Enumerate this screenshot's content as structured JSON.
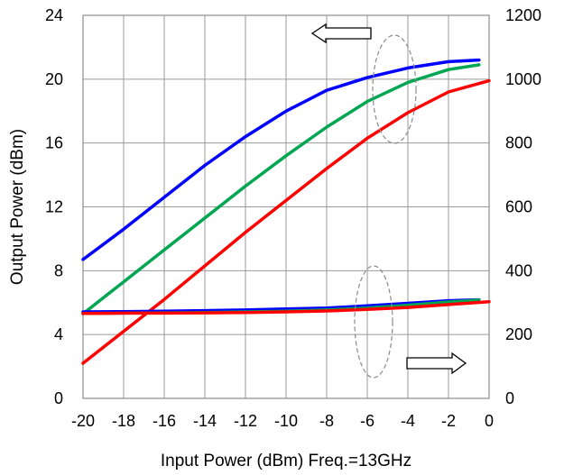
{
  "chart_data": {
    "type": "line",
    "xlabel": "Input Power (dBm) Freq.=13GHz",
    "ylabel_left": "Output Power (dBm)",
    "xlim": [
      -20,
      0
    ],
    "ylim_left": [
      0,
      24
    ],
    "ylim_right": [
      0,
      1200
    ],
    "x_ticks": [
      "-20",
      "-18",
      "-16",
      "-14",
      "-12",
      "-10",
      "-8",
      "-6",
      "-4",
      "-2",
      "0"
    ],
    "y_left_ticks": [
      "0",
      "4",
      "8",
      "12",
      "16",
      "20",
      "24"
    ],
    "y_right_ticks": [
      "0",
      "200",
      "400",
      "600",
      "800",
      "1000",
      "1200"
    ],
    "grid": true,
    "series": [
      {
        "axis": "left",
        "color": "#0000ff",
        "x": [
          -20,
          -18,
          -16,
          -14,
          -12,
          -10,
          -8,
          -6,
          -4,
          -2,
          -0.5
        ],
        "y": [
          8.7,
          10.6,
          12.6,
          14.6,
          16.4,
          18.0,
          19.3,
          20.1,
          20.7,
          21.1,
          21.2
        ]
      },
      {
        "axis": "left",
        "color": "#00a651",
        "x": [
          -20,
          -18,
          -16,
          -14,
          -12,
          -10,
          -8,
          -6,
          -4,
          -2,
          -0.5
        ],
        "y": [
          5.3,
          7.3,
          9.3,
          11.3,
          13.3,
          15.2,
          17.0,
          18.6,
          19.8,
          20.6,
          20.9
        ]
      },
      {
        "axis": "left",
        "color": "#ff0000",
        "x": [
          -20,
          -18,
          -16,
          -14,
          -12,
          -10,
          -8,
          -6,
          -4,
          -2,
          0
        ],
        "y": [
          2.2,
          4.2,
          6.2,
          8.3,
          10.4,
          12.4,
          14.4,
          16.3,
          17.9,
          19.2,
          19.9
        ]
      },
      {
        "axis": "right",
        "color": "#0000ff",
        "x": [
          -20,
          -18,
          -16,
          -14,
          -12,
          -10,
          -8,
          -6,
          -4,
          -2,
          -0.5
        ],
        "y": [
          271,
          272,
          273,
          275,
          277,
          280,
          283,
          290,
          298,
          306,
          309
        ]
      },
      {
        "axis": "right",
        "color": "#00a651",
        "x": [
          -20,
          -18,
          -16,
          -14,
          -12,
          -10,
          -8,
          -6,
          -4,
          -2,
          -0.5
        ],
        "y": [
          266,
          267,
          268,
          269,
          271,
          273,
          277,
          283,
          292,
          302,
          308
        ]
      },
      {
        "axis": "right",
        "color": "#ff0000",
        "x": [
          -20,
          -18,
          -16,
          -14,
          -12,
          -10,
          -8,
          -6,
          -4,
          -2,
          0
        ],
        "y": [
          266,
          267,
          267,
          268,
          269,
          271,
          274,
          279,
          285,
          294,
          303
        ]
      }
    ],
    "annotations": [
      {
        "kind": "arrow",
        "direction": "left",
        "refers_to": "left axis"
      },
      {
        "kind": "arrow",
        "direction": "right",
        "refers_to": "right axis"
      },
      {
        "kind": "dashed-ellipse",
        "encloses": "left-axis curves"
      },
      {
        "kind": "dashed-ellipse",
        "encloses": "right-axis curves"
      }
    ]
  }
}
